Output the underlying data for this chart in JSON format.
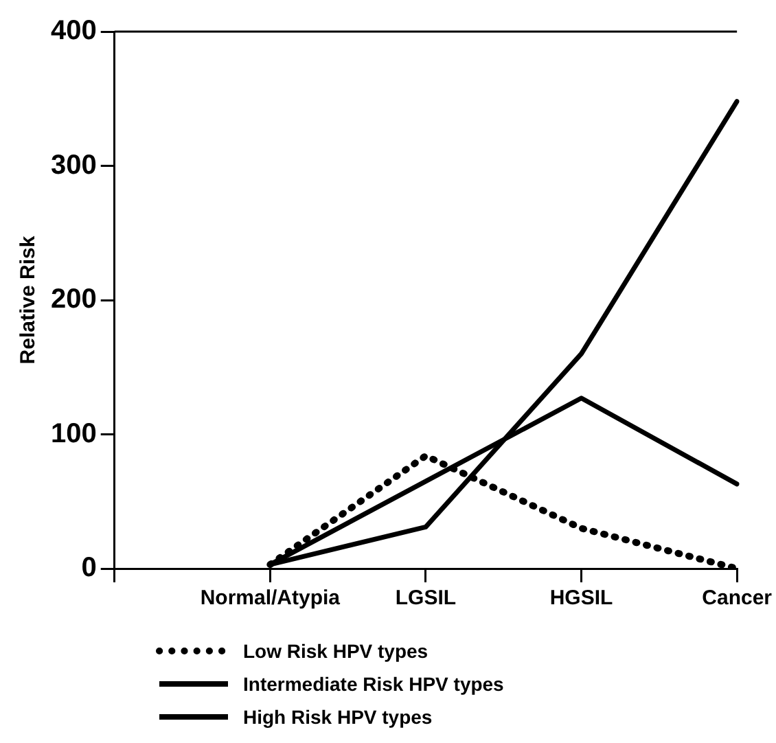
{
  "chart_data": {
    "type": "line",
    "ylabel": "Relative Risk",
    "categories": [
      null,
      "Normal/Atypia",
      "LGSIL",
      "HGSIL",
      "Cancer"
    ],
    "series": [
      {
        "name": "Low Risk HPV types",
        "color": "#000000",
        "line_style": "dotted",
        "values": [
          null,
          3,
          84,
          30,
          0
        ]
      },
      {
        "name": "Intermediate Risk HPV types",
        "color": "#000000",
        "line_style": "solid",
        "values": [
          null,
          3,
          65,
          127,
          63
        ]
      },
      {
        "name": "High Risk HPV types",
        "color": "#000000",
        "line_style": "solid",
        "values": [
          null,
          3,
          31,
          160,
          348
        ]
      }
    ],
    "ylim": [
      0,
      400
    ],
    "yticks": [
      0,
      100,
      200,
      300,
      400
    ],
    "grid": false,
    "legend": "bottom"
  }
}
